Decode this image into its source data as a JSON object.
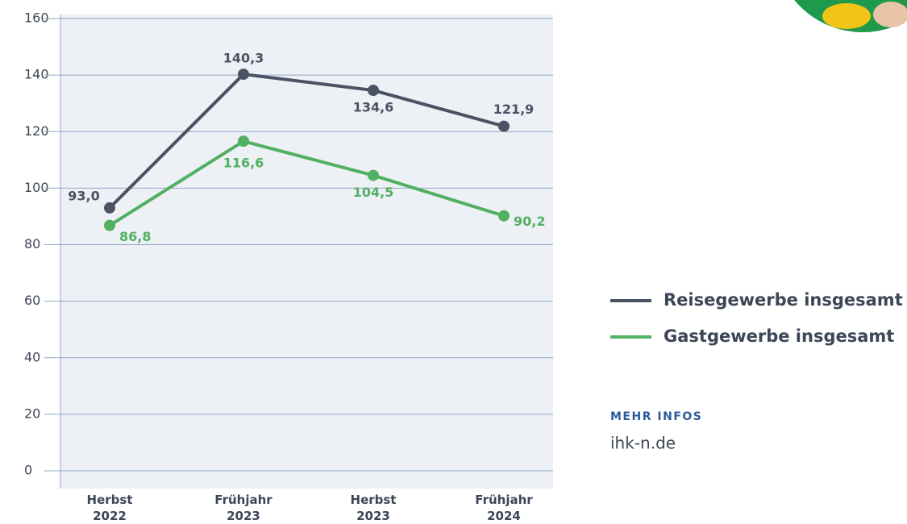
{
  "chart_data": {
    "type": "line",
    "categories": [
      "Herbst 2022",
      "Frühjahr 2023",
      "Herbst 2023",
      "Frühjahr 2024"
    ],
    "series": [
      {
        "name": "Reisegewerbe insgesamt",
        "color": "#4a5263",
        "values": [
          93.0,
          140.3,
          134.6,
          121.9
        ],
        "value_labels": [
          "93,0",
          "140,3",
          "134,6",
          "121,9"
        ]
      },
      {
        "name": "Gastgewerbe insgesamt",
        "color": "#52b062",
        "values": [
          86.8,
          116.6,
          104.5,
          90.2
        ],
        "value_labels": [
          "86,8",
          "116,6",
          "104,5",
          "90,2"
        ]
      }
    ],
    "ylim": [
      0,
      160
    ],
    "yticks": [
      0,
      20,
      40,
      60,
      80,
      100,
      120,
      140,
      160
    ],
    "grid": true,
    "more_info_heading": "MEHR INFOS",
    "more_info_link": "ihk-n.de"
  }
}
